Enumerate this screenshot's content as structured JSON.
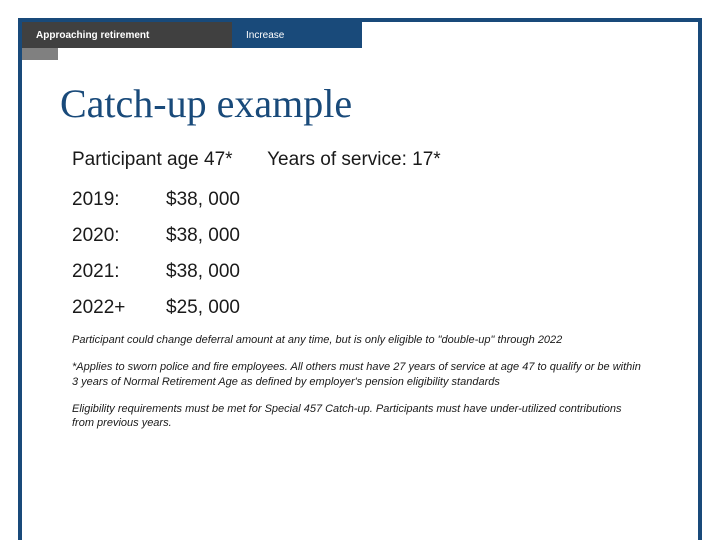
{
  "colors": {
    "border": "#194a7a",
    "tab_dark_bg": "#404040",
    "tab_nav_bg": "#194a7a",
    "corner_gray": "#808080",
    "title_color": "#194a7a",
    "text_color": "#1a1a1a",
    "background": "#ffffff"
  },
  "header": {
    "section_label": "Approaching retirement",
    "nav_label": "Increase"
  },
  "title": "Catch-up example",
  "subhead": {
    "left": "Participant age 47*",
    "right": "Years of service: 17*"
  },
  "rows": [
    {
      "year": "2019:",
      "amount": "$38, 000"
    },
    {
      "year": "2020:",
      "amount": "$38, 000"
    },
    {
      "year": "2021:",
      "amount": "$38, 000"
    },
    {
      "year": "2022+",
      "amount": "$25, 000"
    }
  ],
  "fineprint": [
    "Participant could change deferral amount at any time, but is only eligible to \"double-up\" through 2022",
    "*Applies to sworn police and fire employees. All others must have 27 years of service at age 47 to qualify or be within 3 years of Normal Retirement Age as defined by employer's pension eligibility standards",
    "Eligibility requirements must be met for Special 457 Catch-up. Participants must have under-utilized contributions from previous years."
  ]
}
